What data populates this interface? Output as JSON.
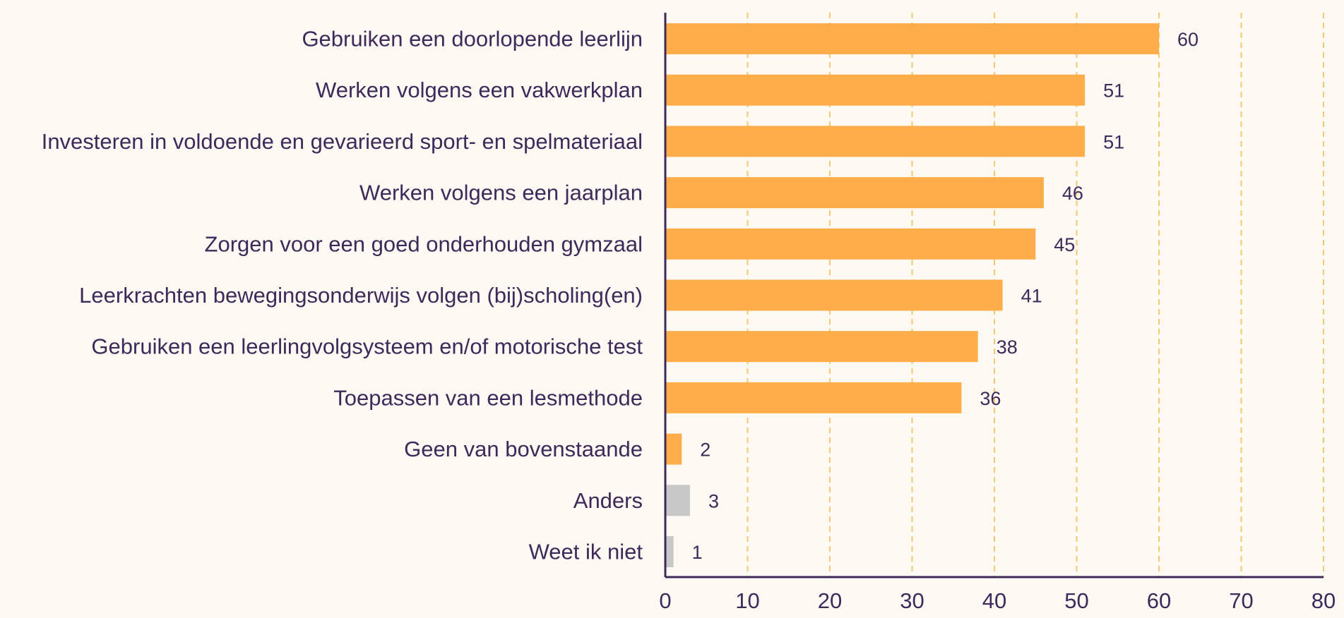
{
  "chart_data": {
    "type": "bar",
    "orientation": "horizontal",
    "categories": [
      "Gebruiken een doorlopende leerlijn",
      "Werken volgens een vakwerkplan",
      "Investeren in voldoende en gevarieerd sport- en spelmateriaal",
      "Werken volgens een jaarplan",
      "Zorgen voor een goed onderhouden gymzaal",
      "Leerkrachten bewegingsonderwijs volgen (bij)scholing(en)",
      "Gebruiken een leerlingvolgsysteem en/of motorische test",
      "Toepassen van een lesmethode",
      "Geen van bovenstaande",
      "Anders",
      "Weet ik niet"
    ],
    "values": [
      60,
      51,
      51,
      46,
      45,
      41,
      38,
      36,
      2,
      3,
      1
    ],
    "value_labels": [
      "60",
      "51",
      "51",
      "46",
      "45",
      "41",
      "38",
      "36",
      "2",
      "3",
      "1"
    ],
    "bar_colors": [
      "#ffad4a",
      "#ffad4a",
      "#ffad4a",
      "#ffad4a",
      "#ffad4a",
      "#ffad4a",
      "#ffad4a",
      "#ffad4a",
      "#ffad4a",
      "#c8c8c8",
      "#c8c8c8"
    ],
    "xlim": [
      0,
      80
    ],
    "xticks": [
      "0",
      "10",
      "20",
      "30",
      "40",
      "50",
      "60",
      "70",
      "80"
    ],
    "title": "",
    "xlabel": "",
    "ylabel": "",
    "grid": "vertical dashed",
    "colors": {
      "background": "#fff9f3",
      "axis": "#3d2a5a",
      "gridline": "#f5c96f",
      "text": "#3d2a5a"
    }
  }
}
